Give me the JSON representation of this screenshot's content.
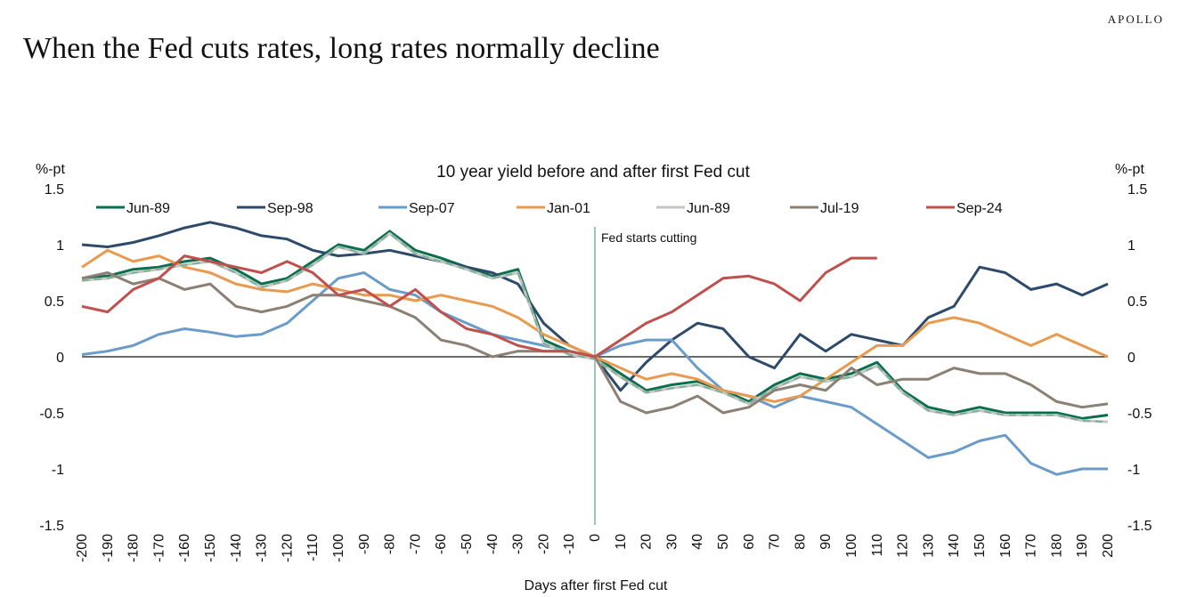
{
  "brand": "APOLLO",
  "headline": "When the Fed cuts rates, long rates normally decline",
  "chart_data": {
    "type": "line",
    "title": "10 year yield before and after first Fed cut",
    "xlabel": "Days after first Fed cut",
    "ylabel_left": "%-pt",
    "ylabel_right": "%-pt",
    "xlim": [
      -200,
      200
    ],
    "ylim": [
      -1.5,
      1.5
    ],
    "x_ticks": [
      -200,
      -190,
      -180,
      -170,
      -160,
      -150,
      -140,
      -130,
      -120,
      -110,
      -100,
      -90,
      -80,
      -70,
      -60,
      -50,
      -40,
      -30,
      -20,
      -10,
      0,
      10,
      20,
      30,
      40,
      50,
      60,
      70,
      80,
      90,
      100,
      110,
      120,
      130,
      140,
      150,
      160,
      170,
      180,
      190,
      200
    ],
    "y_ticks": [
      {
        "value": 1.5,
        "label": "1.5"
      },
      {
        "value": 1,
        "label": "1"
      },
      {
        "value": 0.5,
        "label": "0.5"
      },
      {
        "value": 0,
        "label": "0"
      },
      {
        "value": -0.5,
        "label": "-0.5"
      },
      {
        "value": -1,
        "label": "-1"
      },
      {
        "value": -1.5,
        "label": "-1.5"
      }
    ],
    "annotation": {
      "x": 0,
      "text": "Fed starts cutting"
    },
    "legend_position": "top",
    "grid": false,
    "series": [
      {
        "name": "Jun-89",
        "color": "#0b6e4f",
        "dashed": false,
        "x": [
          -200,
          -190,
          -180,
          -170,
          -160,
          -150,
          -140,
          -130,
          -120,
          -110,
          -100,
          -90,
          -80,
          -70,
          -60,
          -50,
          -40,
          -30,
          -20,
          -10,
          0,
          10,
          20,
          30,
          40,
          50,
          60,
          70,
          80,
          90,
          100,
          110,
          120,
          130,
          140,
          150,
          160,
          170,
          180,
          190,
          200
        ],
        "y": [
          0.7,
          0.72,
          0.78,
          0.8,
          0.85,
          0.88,
          0.78,
          0.65,
          0.7,
          0.85,
          1.0,
          0.95,
          1.12,
          0.95,
          0.88,
          0.8,
          0.72,
          0.78,
          0.15,
          0.05,
          0.0,
          -0.15,
          -0.3,
          -0.25,
          -0.22,
          -0.3,
          -0.4,
          -0.25,
          -0.15,
          -0.2,
          -0.15,
          -0.05,
          -0.3,
          -0.45,
          -0.5,
          -0.45,
          -0.5,
          -0.5,
          -0.5,
          -0.55,
          -0.52
        ]
      },
      {
        "name": "Sep-98",
        "color": "#2d4a6b",
        "dashed": false,
        "x": [
          -200,
          -190,
          -180,
          -170,
          -160,
          -150,
          -140,
          -130,
          -120,
          -110,
          -100,
          -90,
          -80,
          -70,
          -60,
          -50,
          -40,
          -30,
          -20,
          -10,
          0,
          10,
          20,
          30,
          40,
          50,
          60,
          70,
          80,
          90,
          100,
          110,
          120,
          130,
          140,
          150,
          160,
          170,
          180,
          190,
          200
        ],
        "y": [
          1.0,
          0.98,
          1.02,
          1.08,
          1.15,
          1.2,
          1.15,
          1.08,
          1.05,
          0.95,
          0.9,
          0.92,
          0.95,
          0.9,
          0.85,
          0.8,
          0.75,
          0.65,
          0.3,
          0.1,
          0.0,
          -0.3,
          -0.05,
          0.15,
          0.3,
          0.25,
          0.0,
          -0.1,
          0.2,
          0.05,
          0.2,
          0.15,
          0.1,
          0.35,
          0.45,
          0.8,
          0.75,
          0.6,
          0.65,
          0.55,
          0.65
        ]
      },
      {
        "name": "Sep-07",
        "color": "#6b9bc9",
        "dashed": false,
        "x": [
          -200,
          -190,
          -180,
          -170,
          -160,
          -150,
          -140,
          -130,
          -120,
          -110,
          -100,
          -90,
          -80,
          -70,
          -60,
          -50,
          -40,
          -30,
          -20,
          -10,
          0,
          10,
          20,
          30,
          40,
          50,
          60,
          70,
          80,
          90,
          100,
          110,
          120,
          130,
          140,
          150,
          160,
          170,
          180,
          190,
          200
        ],
        "y": [
          0.02,
          0.05,
          0.1,
          0.2,
          0.25,
          0.22,
          0.18,
          0.2,
          0.3,
          0.5,
          0.7,
          0.75,
          0.6,
          0.55,
          0.4,
          0.3,
          0.2,
          0.15,
          0.1,
          0.05,
          0.0,
          0.1,
          0.15,
          0.15,
          -0.1,
          -0.3,
          -0.35,
          -0.45,
          -0.35,
          -0.4,
          -0.45,
          -0.6,
          -0.75,
          -0.9,
          -0.85,
          -0.75,
          -0.7,
          -0.95,
          -1.05,
          -1.0,
          -1.0
        ]
      },
      {
        "name": "Jan-01",
        "color": "#e89a4f",
        "dashed": false,
        "x": [
          -200,
          -190,
          -180,
          -170,
          -160,
          -150,
          -140,
          -130,
          -120,
          -110,
          -100,
          -90,
          -80,
          -70,
          -60,
          -50,
          -40,
          -30,
          -20,
          -10,
          0,
          10,
          20,
          30,
          40,
          50,
          60,
          70,
          80,
          90,
          100,
          110,
          120,
          130,
          140,
          150,
          160,
          170,
          180,
          190,
          200
        ],
        "y": [
          0.8,
          0.95,
          0.85,
          0.9,
          0.8,
          0.75,
          0.65,
          0.6,
          0.58,
          0.65,
          0.6,
          0.55,
          0.55,
          0.5,
          0.55,
          0.5,
          0.45,
          0.35,
          0.2,
          0.1,
          0.0,
          -0.1,
          -0.2,
          -0.15,
          -0.2,
          -0.3,
          -0.35,
          -0.4,
          -0.35,
          -0.2,
          -0.05,
          0.1,
          0.1,
          0.3,
          0.35,
          0.3,
          0.2,
          0.1,
          0.2,
          0.1,
          0.0
        ]
      },
      {
        "name": "Jun-89",
        "color": "#c4c7bf",
        "dashed": true,
        "dash_color": "#7fae9a",
        "x": [
          -200,
          -190,
          -180,
          -170,
          -160,
          -150,
          -140,
          -130,
          -120,
          -110,
          -100,
          -90,
          -80,
          -70,
          -60,
          -50,
          -40,
          -30,
          -20,
          -10,
          0,
          10,
          20,
          30,
          40,
          50,
          60,
          70,
          80,
          90,
          100,
          110,
          120,
          130,
          140,
          150,
          160,
          170,
          180,
          190,
          200
        ],
        "y": [
          0.68,
          0.7,
          0.75,
          0.78,
          0.82,
          0.85,
          0.75,
          0.62,
          0.68,
          0.82,
          0.98,
          0.92,
          1.1,
          0.92,
          0.85,
          0.78,
          0.7,
          0.75,
          0.12,
          0.02,
          -0.02,
          -0.18,
          -0.32,
          -0.28,
          -0.25,
          -0.32,
          -0.42,
          -0.28,
          -0.18,
          -0.22,
          -0.18,
          -0.08,
          -0.32,
          -0.48,
          -0.52,
          -0.48,
          -0.52,
          -0.52,
          -0.52,
          -0.57,
          -0.58
        ]
      },
      {
        "name": "Jul-19",
        "color": "#8c7f73",
        "dashed": false,
        "x": [
          -200,
          -190,
          -180,
          -170,
          -160,
          -150,
          -140,
          -130,
          -120,
          -110,
          -100,
          -90,
          -80,
          -70,
          -60,
          -50,
          -40,
          -30,
          -20,
          -10,
          0,
          10,
          20,
          30,
          40,
          50,
          60,
          70,
          80,
          90,
          100,
          110,
          120,
          130,
          140,
          150,
          160,
          170,
          180,
          190,
          200
        ],
        "y": [
          0.7,
          0.75,
          0.65,
          0.7,
          0.6,
          0.65,
          0.45,
          0.4,
          0.45,
          0.55,
          0.55,
          0.5,
          0.45,
          0.35,
          0.15,
          0.1,
          0.0,
          0.05,
          0.05,
          0.05,
          0.0,
          -0.4,
          -0.5,
          -0.45,
          -0.35,
          -0.5,
          -0.45,
          -0.3,
          -0.25,
          -0.3,
          -0.1,
          -0.25,
          -0.2,
          -0.2,
          -0.1,
          -0.15,
          -0.15,
          -0.25,
          -0.4,
          -0.45,
          -0.42
        ]
      },
      {
        "name": "Sep-24",
        "color": "#c0504d",
        "dashed": false,
        "x": [
          -200,
          -190,
          -180,
          -170,
          -160,
          -150,
          -140,
          -130,
          -120,
          -110,
          -100,
          -90,
          -80,
          -70,
          -60,
          -50,
          -40,
          -30,
          -20,
          -10,
          0,
          10,
          20,
          30,
          40,
          50,
          60,
          70,
          80,
          90,
          100,
          110
        ],
        "y": [
          0.45,
          0.4,
          0.6,
          0.7,
          0.9,
          0.85,
          0.8,
          0.75,
          0.85,
          0.75,
          0.55,
          0.6,
          0.45,
          0.6,
          0.4,
          0.25,
          0.2,
          0.1,
          0.05,
          0.05,
          0.0,
          0.15,
          0.3,
          0.4,
          0.55,
          0.7,
          0.72,
          0.65,
          0.5,
          0.75,
          0.88,
          0.88
        ]
      }
    ]
  }
}
